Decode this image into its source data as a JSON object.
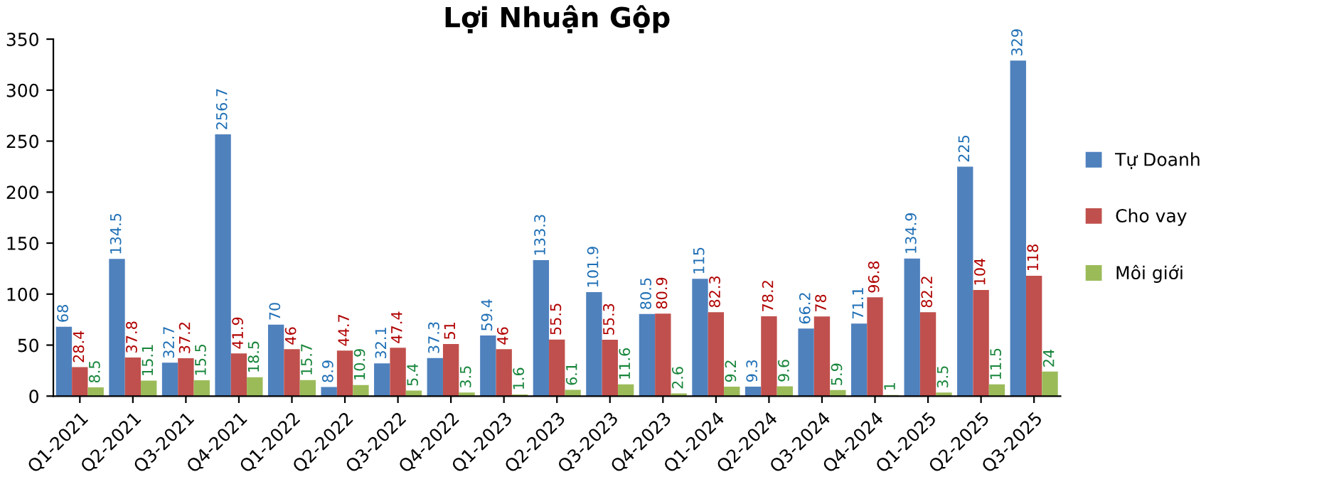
{
  "chart_data": {
    "type": "bar",
    "title": "Lợi Nhuận Gộp",
    "categories": [
      "Q1-2021",
      "Q2-2021",
      "Q3-2021",
      "Q4-2021",
      "Q1-2022",
      "Q2-2022",
      "Q3-2022",
      "Q4-2022",
      "Q1-2023",
      "Q2-2023",
      "Q3-2023",
      "Q4-2023",
      "Q1-2024",
      "Q2-2024",
      "Q3-2024",
      "Q4-2024",
      "Q1-2025",
      "Q2-2025",
      "Q3-2025"
    ],
    "series": [
      {
        "name": "Tự Doanh",
        "color": "#4f81bd",
        "values": [
          68,
          134.5,
          32.7,
          256.7,
          70,
          8.9,
          32.1,
          37.3,
          59.4,
          133.3,
          101.9,
          80.5,
          115,
          9.3,
          66.2,
          71.1,
          134.9,
          225,
          329
        ]
      },
      {
        "name": "Cho vay",
        "color": "#c0504d",
        "values": [
          28.4,
          37.8,
          37.2,
          41.9,
          46,
          44.7,
          47.4,
          51,
          46,
          55.5,
          55.3,
          80.9,
          82.3,
          78.2,
          78,
          96.8,
          82.2,
          104,
          118
        ]
      },
      {
        "name": "Môi giới",
        "color": "#9bbb59",
        "values": [
          8.5,
          15.1,
          15.5,
          18.5,
          15.7,
          10.9,
          5.4,
          3.5,
          1.6,
          6.1,
          11.6,
          2.6,
          9.2,
          9.6,
          5.9,
          1,
          3.5,
          11.5,
          24
        ]
      }
    ],
    "ylim": [
      0,
      350
    ],
    "yticks": [
      0,
      50,
      100,
      150,
      200,
      250,
      300,
      350
    ],
    "grid": false,
    "legend": "right",
    "data_labels": true
  }
}
